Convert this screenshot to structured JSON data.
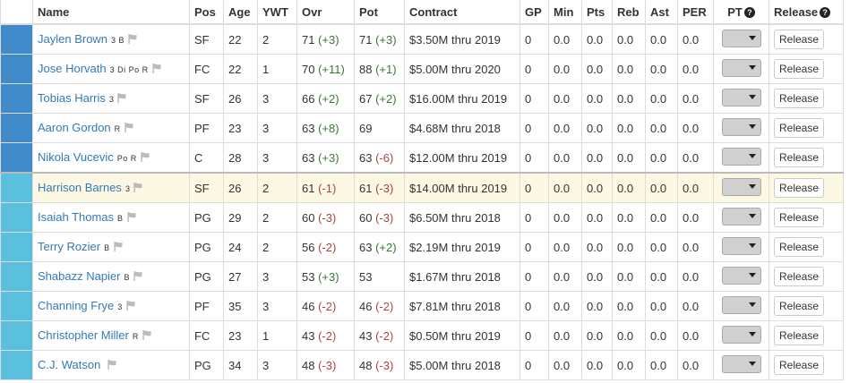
{
  "headers": {
    "name": "Name",
    "pos": "Pos",
    "age": "Age",
    "ywt": "YWT",
    "ovr": "Ovr",
    "pot": "Pot",
    "contract": "Contract",
    "gp": "GP",
    "min": "Min",
    "pts": "Pts",
    "reb": "Reb",
    "ast": "Ast",
    "per": "PER",
    "pt": "PT",
    "release": "Release",
    "help_glyph": "?"
  },
  "colors": {
    "starter": "#428bca",
    "bench": "#5bc0de",
    "highlight": "#fcf8e3",
    "positive": "#3c763d",
    "negative": "#a94442"
  },
  "rows": [
    {
      "name": "Jaylen Brown",
      "skills": "3 B",
      "pos": "SF",
      "age": "22",
      "ywt": "2",
      "ovr": "71",
      "ovr_delta": "(+3)",
      "pot": "71",
      "pot_delta": "(+3)",
      "contract": "$3.50M thru 2019",
      "gp": "0",
      "min": "0.0",
      "pts": "0.0",
      "reb": "0.0",
      "ast": "0.0",
      "per": "0.0",
      "release": "Release",
      "group": "starter"
    },
    {
      "name": "Jose Horvath",
      "skills": "3 Di Po R",
      "pos": "FC",
      "age": "22",
      "ywt": "1",
      "ovr": "70",
      "ovr_delta": "(+11)",
      "pot": "88",
      "pot_delta": "(+1)",
      "contract": "$5.00M thru 2020",
      "gp": "0",
      "min": "0.0",
      "pts": "0.0",
      "reb": "0.0",
      "ast": "0.0",
      "per": "0.0",
      "release": "Release",
      "group": "starter"
    },
    {
      "name": "Tobias Harris",
      "skills": "3",
      "pos": "SF",
      "age": "26",
      "ywt": "3",
      "ovr": "66",
      "ovr_delta": "(+2)",
      "pot": "67",
      "pot_delta": "(+2)",
      "contract": "$16.00M thru 2019",
      "gp": "0",
      "min": "0.0",
      "pts": "0.0",
      "reb": "0.0",
      "ast": "0.0",
      "per": "0.0",
      "release": "Release",
      "group": "starter"
    },
    {
      "name": "Aaron Gordon",
      "skills": "R",
      "pos": "PF",
      "age": "23",
      "ywt": "3",
      "ovr": "63",
      "ovr_delta": "(+8)",
      "pot": "69",
      "pot_delta": "",
      "contract": "$4.68M thru 2018",
      "gp": "0",
      "min": "0.0",
      "pts": "0.0",
      "reb": "0.0",
      "ast": "0.0",
      "per": "0.0",
      "release": "Release",
      "group": "starter"
    },
    {
      "name": "Nikola Vucevic",
      "skills": "Po R",
      "pos": "C",
      "age": "28",
      "ywt": "3",
      "ovr": "63",
      "ovr_delta": "(+3)",
      "pot": "63",
      "pot_delta": "(-6)",
      "contract": "$12.00M thru 2019",
      "gp": "0",
      "min": "0.0",
      "pts": "0.0",
      "reb": "0.0",
      "ast": "0.0",
      "per": "0.0",
      "release": "Release",
      "group": "starter"
    },
    {
      "name": "Harrison Barnes",
      "skills": "3",
      "pos": "SF",
      "age": "26",
      "ywt": "2",
      "ovr": "61",
      "ovr_delta": "(-1)",
      "pot": "61",
      "pot_delta": "(-3)",
      "contract": "$14.00M thru 2019",
      "gp": "0",
      "min": "0.0",
      "pts": "0.0",
      "reb": "0.0",
      "ast": "0.0",
      "per": "0.0",
      "release": "Release",
      "group": "bench"
    },
    {
      "name": "Isaiah Thomas",
      "skills": "B",
      "pos": "PG",
      "age": "29",
      "ywt": "2",
      "ovr": "60",
      "ovr_delta": "(-3)",
      "pot": "60",
      "pot_delta": "(-3)",
      "contract": "$6.50M thru 2018",
      "gp": "0",
      "min": "0.0",
      "pts": "0.0",
      "reb": "0.0",
      "ast": "0.0",
      "per": "0.0",
      "release": "Release",
      "group": "bench"
    },
    {
      "name": "Terry Rozier",
      "skills": "B",
      "pos": "PG",
      "age": "24",
      "ywt": "2",
      "ovr": "56",
      "ovr_delta": "(-2)",
      "pot": "63",
      "pot_delta": "(+2)",
      "contract": "$2.19M thru 2019",
      "gp": "0",
      "min": "0.0",
      "pts": "0.0",
      "reb": "0.0",
      "ast": "0.0",
      "per": "0.0",
      "release": "Release",
      "group": "bench"
    },
    {
      "name": "Shabazz Napier",
      "skills": "B",
      "pos": "PG",
      "age": "27",
      "ywt": "3",
      "ovr": "53",
      "ovr_delta": "(+3)",
      "pot": "53",
      "pot_delta": "",
      "contract": "$1.67M thru 2018",
      "gp": "0",
      "min": "0.0",
      "pts": "0.0",
      "reb": "0.0",
      "ast": "0.0",
      "per": "0.0",
      "release": "Release",
      "group": "bench"
    },
    {
      "name": "Channing Frye",
      "skills": "3",
      "pos": "PF",
      "age": "35",
      "ywt": "3",
      "ovr": "46",
      "ovr_delta": "(-2)",
      "pot": "46",
      "pot_delta": "(-2)",
      "contract": "$7.81M thru 2018",
      "gp": "0",
      "min": "0.0",
      "pts": "0.0",
      "reb": "0.0",
      "ast": "0.0",
      "per": "0.0",
      "release": "Release",
      "group": "bench"
    },
    {
      "name": "Christopher Miller",
      "skills": "R",
      "pos": "FC",
      "age": "23",
      "ywt": "1",
      "ovr": "43",
      "ovr_delta": "(-2)",
      "pot": "43",
      "pot_delta": "(-2)",
      "contract": "$0.50M thru 2019",
      "gp": "0",
      "min": "0.0",
      "pts": "0.0",
      "reb": "0.0",
      "ast": "0.0",
      "per": "0.0",
      "release": "Release",
      "group": "bench"
    },
    {
      "name": "C.J. Watson",
      "skills": "",
      "pos": "PG",
      "age": "34",
      "ywt": "3",
      "ovr": "48",
      "ovr_delta": "(-3)",
      "pot": "48",
      "pot_delta": "(-3)",
      "contract": "$5.00M thru 2018",
      "gp": "0",
      "min": "0.0",
      "pts": "0.0",
      "reb": "0.0",
      "ast": "0.0",
      "per": "0.0",
      "release": "Release",
      "group": "bench"
    }
  ]
}
